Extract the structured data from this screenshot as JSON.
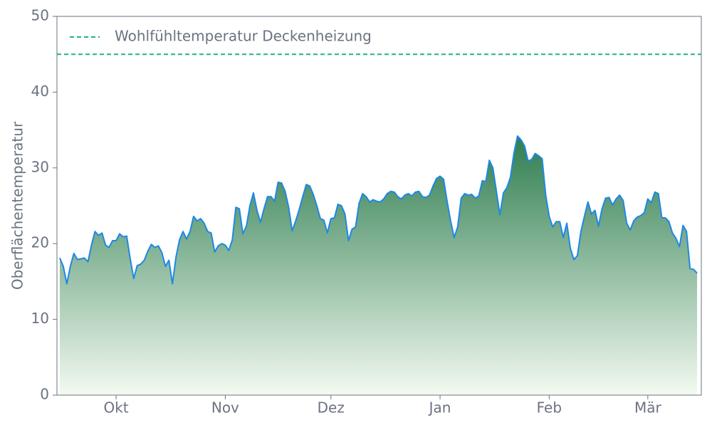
{
  "chart_data": {
    "type": "line",
    "ylabel": "Oberflächentemperatur",
    "x": [
      -16,
      -15,
      -14,
      -13,
      -12,
      -11,
      -10,
      -9,
      -8,
      -7,
      -6,
      -5,
      -4,
      -3,
      -2,
      -1,
      0,
      1,
      2,
      3,
      4,
      5,
      6,
      7,
      8,
      9,
      10,
      11,
      12,
      13,
      14,
      15,
      16,
      17,
      18,
      19,
      20,
      21,
      22,
      23,
      24,
      25,
      26,
      27,
      28,
      29,
      30,
      31,
      32,
      33,
      34,
      35,
      36,
      37,
      38,
      39,
      40,
      41,
      42,
      43,
      44,
      45,
      46,
      47,
      48,
      49,
      50,
      51,
      52,
      53,
      54,
      55,
      56,
      57,
      58,
      59,
      60,
      61,
      62,
      63,
      64,
      65,
      66,
      67,
      68,
      69,
      70,
      71,
      72,
      73,
      74,
      75,
      76,
      77,
      78,
      79,
      80,
      81,
      82,
      83,
      84,
      85,
      86,
      87,
      88,
      89,
      90,
      91,
      92,
      93,
      94,
      95,
      96,
      97,
      98,
      99,
      100,
      101,
      102,
      103,
      104,
      105,
      106,
      107,
      108,
      109,
      110,
      111,
      112,
      113,
      114,
      115,
      116,
      117,
      118,
      119,
      120,
      121,
      122,
      123,
      124,
      125,
      126,
      127,
      128,
      129,
      130,
      131,
      132,
      133,
      134,
      135,
      136,
      137,
      138,
      139,
      140,
      141,
      142,
      143,
      144,
      145,
      146,
      147,
      148,
      149,
      150,
      151,
      152,
      153,
      154,
      155,
      156,
      157,
      158,
      159,
      160,
      161,
      162,
      163,
      164,
      165
    ],
    "series": [
      {
        "color": "#1e88e5",
        "values": [
          18.1,
          17.0,
          14.7,
          17.0,
          18.7,
          17.9,
          18.0,
          18.1,
          17.6,
          19.8,
          21.6,
          21.1,
          21.4,
          19.8,
          19.5,
          20.4,
          20.4,
          21.3,
          20.9,
          21.0,
          18.0,
          15.4,
          17.1,
          17.3,
          17.8,
          19.0,
          19.9,
          19.5,
          19.7,
          18.8,
          17.0,
          17.8,
          14.7,
          18.2,
          20.5,
          21.6,
          20.6,
          21.6,
          23.6,
          23.0,
          23.3,
          22.7,
          21.6,
          21.4,
          18.9,
          19.7,
          20.0,
          19.8,
          19.1,
          20.5,
          24.8,
          24.6,
          21.3,
          22.3,
          25.0,
          26.7,
          24.4,
          22.8,
          24.6,
          26.2,
          26.2,
          25.6,
          28.1,
          28.0,
          26.9,
          24.8,
          21.7,
          23.0,
          24.5,
          26.2,
          27.8,
          27.6,
          26.5,
          25.0,
          23.3,
          23.1,
          21.4,
          23.3,
          23.4,
          25.2,
          25.0,
          23.9,
          20.4,
          21.9,
          22.2,
          25.3,
          26.6,
          26.2,
          25.5,
          25.8,
          25.6,
          25.5,
          25.9,
          26.6,
          26.9,
          26.8,
          26.2,
          25.9,
          26.4,
          26.6,
          26.3,
          26.8,
          26.9,
          26.2,
          26.1,
          26.4,
          27.6,
          28.6,
          28.9,
          28.5,
          25.6,
          23.0,
          20.8,
          22.2,
          26.0,
          26.6,
          26.4,
          26.5,
          26.0,
          26.3,
          28.3,
          28.2,
          31.0,
          30.0,
          26.9,
          23.8,
          26.7,
          27.4,
          28.8,
          32.0,
          34.2,
          33.7,
          32.9,
          30.9,
          31.1,
          31.9,
          31.6,
          31.2,
          26.4,
          23.6,
          22.2,
          22.9,
          22.9,
          20.8,
          22.7,
          19.4,
          17.9,
          18.4,
          21.6,
          23.6,
          25.5,
          23.9,
          24.4,
          22.3,
          24.6,
          26.0,
          26.1,
          25.1,
          25.9,
          26.4,
          25.7,
          22.7,
          21.8,
          23.0,
          23.5,
          23.7,
          24.1,
          25.9,
          25.4,
          26.8,
          26.6,
          23.4,
          23.4,
          22.9,
          21.4,
          20.7,
          19.6,
          22.4,
          21.6,
          16.7,
          16.6,
          16.1
        ]
      }
    ],
    "fill_gradient": [
      "#2e7d4f",
      "#f3faf1"
    ],
    "reference_lines": [
      {
        "name": "Wohlfühltemperatur Deckenheizung",
        "value": 45,
        "color": "#1db38a",
        "dashed": true
      }
    ],
    "legend": "upper left",
    "xlim": [
      -16.8,
      166.2
    ],
    "xticks": [
      {
        "value": 0,
        "label": "Okt"
      },
      {
        "value": 31,
        "label": "Nov"
      },
      {
        "value": 61,
        "label": "Dez"
      },
      {
        "value": 92,
        "label": "Jan"
      },
      {
        "value": 123,
        "label": "Feb"
      },
      {
        "value": 151,
        "label": "Mär"
      }
    ],
    "ylim": [
      0,
      50
    ],
    "yticks": [
      0,
      10,
      20,
      30,
      40,
      50
    ],
    "grid": false
  }
}
